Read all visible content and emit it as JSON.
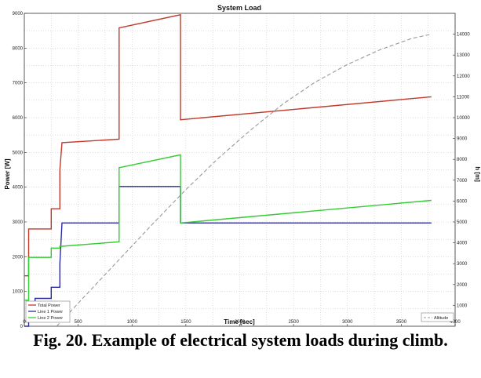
{
  "chart_data": {
    "type": "line",
    "title": "System Load",
    "xlabel": "Time [sec]",
    "ylabel": "Power [W]",
    "y2label": "h [m]",
    "xlim": [
      0,
      4000
    ],
    "ylim": [
      0,
      9000
    ],
    "y2lim": [
      0,
      15000
    ],
    "x_ticks": [
      0,
      500,
      1000,
      1500,
      2000,
      2500,
      3000,
      3500,
      4000
    ],
    "y_ticks": [
      0,
      1000,
      2000,
      3000,
      4000,
      5000,
      6000,
      7000,
      8000,
      9000
    ],
    "y2_ticks": [
      1000,
      2000,
      3000,
      4000,
      5000,
      6000,
      7000,
      8000,
      9000,
      10000,
      11000,
      12000,
      13000,
      14000
    ],
    "grid": true,
    "series": [
      {
        "name": "Total Power",
        "color": "#c0392b",
        "axis": "left",
        "x": [
          0,
          40,
          40,
          250,
          250,
          330,
          330,
          350,
          350,
          880,
          880,
          1450,
          1450,
          3780
        ],
        "y": [
          1450,
          1450,
          2800,
          2800,
          3380,
          3380,
          4500,
          5280,
          5280,
          5380,
          8580,
          8960,
          5940,
          6600
        ]
      },
      {
        "name": "Line 1 Power",
        "color": "#2c2c9e",
        "axis": "left",
        "x": [
          0,
          40,
          40,
          100,
          100,
          250,
          250,
          330,
          330,
          350,
          350,
          880,
          880,
          1450,
          1450,
          3780
        ],
        "y": [
          0,
          0,
          550,
          550,
          800,
          800,
          1120,
          1120,
          1800,
          2970,
          2970,
          2970,
          4020,
          4020,
          2970,
          2970
        ]
      },
      {
        "name": "Line 2 Power",
        "color": "#33cc33",
        "axis": "left",
        "x": [
          0,
          40,
          40,
          250,
          250,
          330,
          330,
          350,
          350,
          880,
          880,
          1450,
          1450,
          3780
        ],
        "y": [
          750,
          750,
          1980,
          1980,
          2250,
          2250,
          2300,
          2300,
          2300,
          2430,
          4560,
          4930,
          2970,
          3620
        ]
      },
      {
        "name": "Altitude",
        "color": "#999999",
        "dashed": true,
        "axis": "right",
        "x": [
          300,
          600,
          900,
          1200,
          1500,
          1800,
          2100,
          2400,
          2700,
          3000,
          3300,
          3600,
          3780
        ],
        "y": [
          0,
          1650,
          3300,
          4950,
          6550,
          8050,
          9400,
          10650,
          11700,
          12550,
          13250,
          13800,
          14000
        ]
      }
    ],
    "legend_left": {
      "position": "bottom-left",
      "entries": [
        "Total Power",
        "Line 1 Power",
        "Line 2 Power"
      ]
    },
    "legend_right": {
      "position": "bottom-right",
      "entries": [
        "Altitude"
      ]
    }
  },
  "caption": "Fig. 20. Example of electrical system loads during climb."
}
